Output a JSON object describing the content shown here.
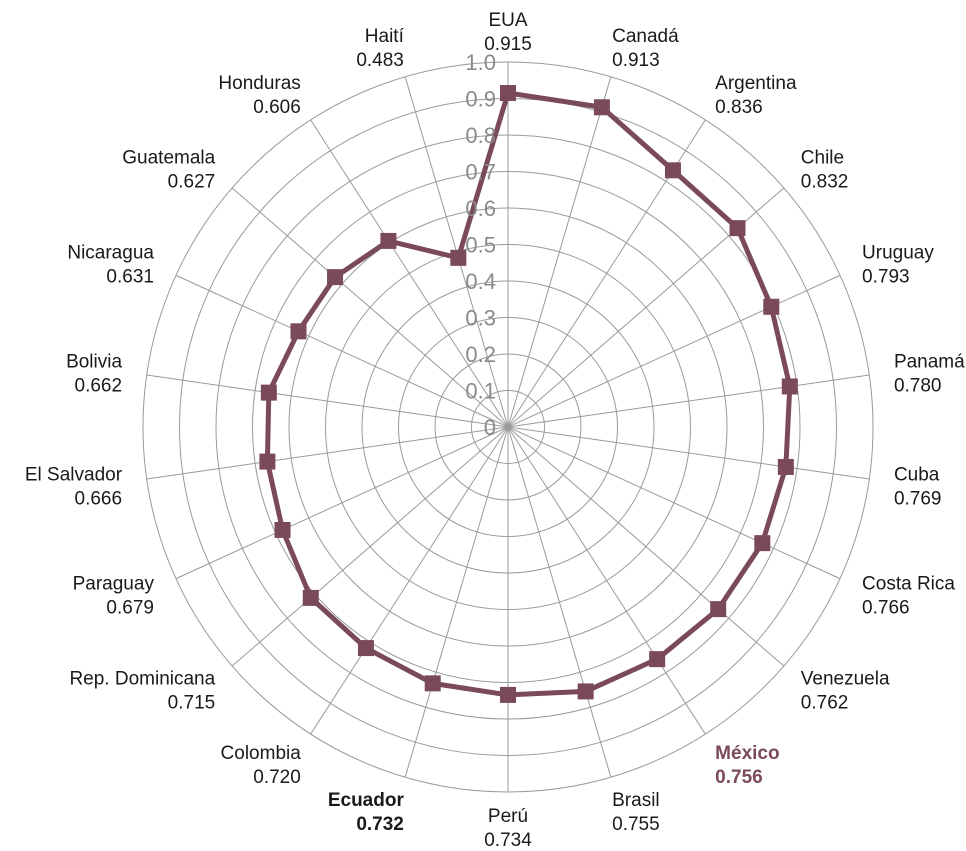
{
  "chart_data": {
    "type": "radar",
    "categories": [
      "EUA",
      "Canadá",
      "Argentina",
      "Chile",
      "Uruguay",
      "Panamá",
      "Cuba",
      "Costa Rica",
      "Venezuela",
      "México",
      "Brasil",
      "Perú",
      "Ecuador",
      "Colombia",
      "Rep. Dominicana",
      "Paraguay",
      "El Salvador",
      "Bolivia",
      "Nicaragua",
      "Guatemala",
      "Honduras",
      "Haití"
    ],
    "value_labels": [
      "0.915",
      "0.913",
      "0.836",
      "0.832",
      "0.793",
      "0.780",
      "0.769",
      "0.766",
      "0.762",
      "0.756",
      "0.755",
      "0.734",
      "0.732",
      "0.720",
      "0.715",
      "0.679",
      "0.666",
      "0.662",
      "0.631",
      "0.627",
      "0.606",
      "0.483"
    ],
    "values": [
      0.915,
      0.913,
      0.836,
      0.832,
      0.793,
      0.78,
      0.769,
      0.766,
      0.762,
      0.756,
      0.755,
      0.734,
      0.732,
      0.72,
      0.715,
      0.679,
      0.666,
      0.662,
      0.631,
      0.627,
      0.606,
      0.483
    ],
    "highlight": "México",
    "bold_label": "Ecuador",
    "ticks": [
      "0",
      "0.1",
      "0.2",
      "0.3",
      "0.4",
      "0.5",
      "0.6",
      "0.7",
      "0.8",
      "0.9",
      "1.0"
    ],
    "rlim": [
      0,
      1.0
    ],
    "grid": true,
    "colors": {
      "series": "#7b4a5a",
      "grid": "#9a9a9a",
      "tick_text": "#8a8a8a",
      "label_text": "#1a1a1a"
    }
  }
}
